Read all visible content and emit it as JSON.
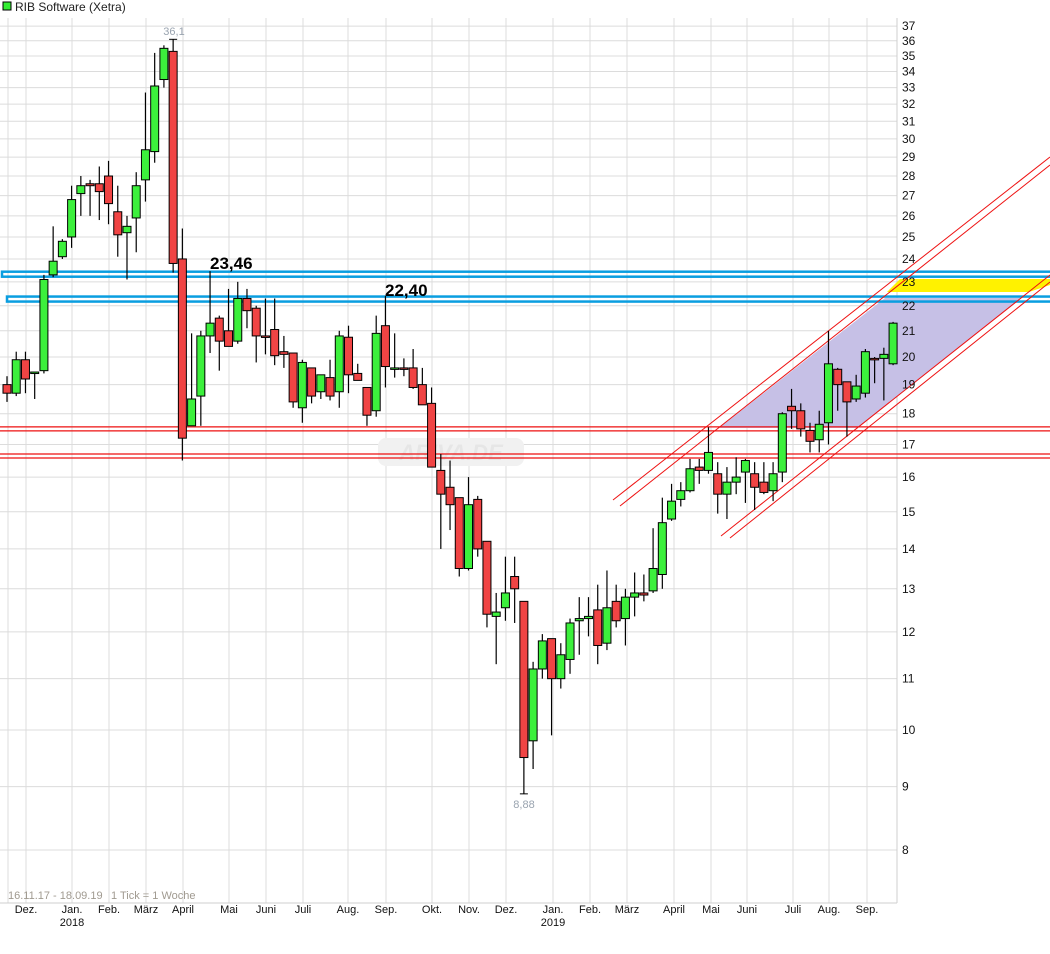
{
  "header": {
    "title": "RIB Software (Xetra)",
    "legend_color": "#33ee33"
  },
  "footer": {
    "range_text": "16.11.17 - 18.09.19",
    "tick_text": "1 Tick = 1 Woche"
  },
  "watermark": "ARIVA.DE",
  "colors": {
    "up": "#3cf03c",
    "down": "#f04444",
    "support": "#ee1111",
    "resistance": "#0a9ee0",
    "channel_fill": "#c6c0e6",
    "highlight": "#fff200"
  },
  "chart_data": {
    "type": "candlestick",
    "title": "RIB Software (Xetra)",
    "interval": "weekly",
    "date_range": "16.11.17 - 18.09.19",
    "y_scale": "log",
    "ylim": [
      8,
      37
    ],
    "y_ticks": [
      8,
      9,
      10,
      11,
      12,
      13,
      14,
      15,
      16,
      17,
      18,
      19,
      20,
      21,
      22,
      23,
      24,
      25,
      26,
      27,
      28,
      29,
      30,
      31,
      32,
      33,
      34,
      35,
      36,
      37
    ],
    "grid": true,
    "x_ticks": [
      {
        "label": "Dez.",
        "year": ""
      },
      {
        "label": "Jan.",
        "year": "2018"
      },
      {
        "label": "Feb.",
        "year": ""
      },
      {
        "label": "März",
        "year": ""
      },
      {
        "label": "April",
        "year": ""
      },
      {
        "label": "Mai",
        "year": ""
      },
      {
        "label": "Juni",
        "year": ""
      },
      {
        "label": "Juli",
        "year": ""
      },
      {
        "label": "Aug.",
        "year": ""
      },
      {
        "label": "Sep.",
        "year": ""
      },
      {
        "label": "Okt.",
        "year": ""
      },
      {
        "label": "Nov.",
        "year": ""
      },
      {
        "label": "Dez.",
        "year": ""
      },
      {
        "label": "Jan.",
        "year": "2019"
      },
      {
        "label": "Feb.",
        "year": ""
      },
      {
        "label": "März",
        "year": ""
      },
      {
        "label": "April",
        "year": ""
      },
      {
        "label": "Mai",
        "year": ""
      },
      {
        "label": "Juni",
        "year": ""
      },
      {
        "label": "Juli",
        "year": ""
      },
      {
        "label": "Aug.",
        "year": ""
      },
      {
        "label": "Sep.",
        "year": ""
      }
    ],
    "ohlc_fields": [
      "open",
      "high",
      "low",
      "close"
    ],
    "candles": [
      [
        19.0,
        19.3,
        18.4,
        18.7
      ],
      [
        18.7,
        20.2,
        18.6,
        19.9
      ],
      [
        19.9,
        20.2,
        18.7,
        19.2
      ],
      [
        19.4,
        19.4,
        18.5,
        19.45
      ],
      [
        19.5,
        23.3,
        19.4,
        23.1
      ],
      [
        23.3,
        25.5,
        23.2,
        23.9
      ],
      [
        24.1,
        24.9,
        24.0,
        24.8
      ],
      [
        25.0,
        27.5,
        24.5,
        26.8
      ],
      [
        27.1,
        28.0,
        26.0,
        27.5
      ],
      [
        27.6,
        27.8,
        26.0,
        27.5
      ],
      [
        27.6,
        28.5,
        25.8,
        27.2
      ],
      [
        28.0,
        28.8,
        25.6,
        26.6
      ],
      [
        26.2,
        27.5,
        24.1,
        25.1
      ],
      [
        25.2,
        26.0,
        23.1,
        25.5
      ],
      [
        25.9,
        28.2,
        24.3,
        27.5
      ],
      [
        27.8,
        32.7,
        26.7,
        29.4
      ],
      [
        29.3,
        35.2,
        28.7,
        33.1
      ],
      [
        33.5,
        35.7,
        33.0,
        35.5
      ],
      [
        35.3,
        36.1,
        23.4,
        23.8
      ],
      [
        24.0,
        25.4,
        16.5,
        17.2
      ],
      [
        17.6,
        20.9,
        17.6,
        18.5
      ],
      [
        18.6,
        21.0,
        17.6,
        20.8
      ],
      [
        20.8,
        23.46,
        20.15,
        21.3
      ],
      [
        21.5,
        21.6,
        19.5,
        20.6
      ],
      [
        21.0,
        22.7,
        20.4,
        20.4
      ],
      [
        20.6,
        23.0,
        20.5,
        22.3
      ],
      [
        22.3,
        22.7,
        21.1,
        21.8
      ],
      [
        21.9,
        22.0,
        19.8,
        20.8
      ],
      [
        20.8,
        22.3,
        20.1,
        20.75
      ],
      [
        21.05,
        22.3,
        19.7,
        20.05
      ],
      [
        20.2,
        20.8,
        19.6,
        20.1
      ],
      [
        20.15,
        20.15,
        18.2,
        18.4
      ],
      [
        18.2,
        19.9,
        17.7,
        19.8
      ],
      [
        19.6,
        19.6,
        18.35,
        18.6
      ],
      [
        18.75,
        19.35,
        18.5,
        19.35
      ],
      [
        19.25,
        19.9,
        18.45,
        18.6
      ],
      [
        18.75,
        21.0,
        18.2,
        20.8
      ],
      [
        20.75,
        21.2,
        18.7,
        19.35
      ],
      [
        19.4,
        19.75,
        19.15,
        19.15
      ],
      [
        18.9,
        18.9,
        17.6,
        17.95
      ],
      [
        18.1,
        21.6,
        17.9,
        20.9
      ],
      [
        21.2,
        22.4,
        18.9,
        19.65
      ],
      [
        19.55,
        20.9,
        19.25,
        19.6
      ],
      [
        19.6,
        19.95,
        19.3,
        19.55
      ],
      [
        19.6,
        20.3,
        18.85,
        18.9
      ],
      [
        19.0,
        19.6,
        18.3,
        18.3
      ],
      [
        18.35,
        18.9,
        16.3,
        16.3
      ],
      [
        16.2,
        16.7,
        14.0,
        15.5
      ],
      [
        15.7,
        16.5,
        14.5,
        15.2
      ],
      [
        15.4,
        15.4,
        13.3,
        13.5
      ],
      [
        13.5,
        16.0,
        13.45,
        15.2
      ],
      [
        15.35,
        15.45,
        13.8,
        14.0
      ],
      [
        14.2,
        14.2,
        12.1,
        12.4
      ],
      [
        12.35,
        12.9,
        11.3,
        12.45
      ],
      [
        12.55,
        13.8,
        12.25,
        12.9
      ],
      [
        13.3,
        13.8,
        12.2,
        13.0
      ],
      [
        12.7,
        12.7,
        8.88,
        9.5
      ],
      [
        9.8,
        11.35,
        9.3,
        11.2
      ],
      [
        11.2,
        11.95,
        11.0,
        11.8
      ],
      [
        11.85,
        11.85,
        9.9,
        11.0
      ],
      [
        11.0,
        11.75,
        10.8,
        11.5
      ],
      [
        11.4,
        12.3,
        11.1,
        12.2
      ],
      [
        12.25,
        12.8,
        11.5,
        12.3
      ],
      [
        12.3,
        12.8,
        11.9,
        12.35
      ],
      [
        12.5,
        13.1,
        11.3,
        11.7
      ],
      [
        11.75,
        13.45,
        11.6,
        12.55
      ],
      [
        12.7,
        13.1,
        12.1,
        12.25
      ],
      [
        12.3,
        13.0,
        11.7,
        12.8
      ],
      [
        12.8,
        13.4,
        12.35,
        12.9
      ],
      [
        12.9,
        13.35,
        12.7,
        12.85
      ],
      [
        12.95,
        14.55,
        12.9,
        13.5
      ],
      [
        13.35,
        15.4,
        13.0,
        14.7
      ],
      [
        14.8,
        15.8,
        14.75,
        15.3
      ],
      [
        15.35,
        15.85,
        15.15,
        15.6
      ],
      [
        15.6,
        16.55,
        15.55,
        16.25
      ],
      [
        16.3,
        16.55,
        15.8,
        16.2
      ],
      [
        16.2,
        17.55,
        16.1,
        16.75
      ],
      [
        16.1,
        16.45,
        14.95,
        15.5
      ],
      [
        15.5,
        16.3,
        14.8,
        15.85
      ],
      [
        15.85,
        16.6,
        15.5,
        16.0
      ],
      [
        16.15,
        16.55,
        15.25,
        16.5
      ],
      [
        16.1,
        16.45,
        15.05,
        15.7
      ],
      [
        15.85,
        16.45,
        15.5,
        15.55
      ],
      [
        15.6,
        16.45,
        15.3,
        16.1
      ],
      [
        16.15,
        18.05,
        15.85,
        18.0
      ],
      [
        18.25,
        18.85,
        17.5,
        18.1
      ],
      [
        18.1,
        18.35,
        17.25,
        17.5
      ],
      [
        17.45,
        17.7,
        16.75,
        17.1
      ],
      [
        17.15,
        18.1,
        16.75,
        17.65
      ],
      [
        17.7,
        21.0,
        17.0,
        19.75
      ],
      [
        19.55,
        19.6,
        18.1,
        19.0
      ],
      [
        19.1,
        19.1,
        17.25,
        18.4
      ],
      [
        18.5,
        19.35,
        18.4,
        18.95
      ],
      [
        18.7,
        20.3,
        18.55,
        20.2
      ],
      [
        19.95,
        20.0,
        19.05,
        19.9
      ],
      [
        19.95,
        20.35,
        18.45,
        20.1
      ],
      [
        19.75,
        21.35,
        19.7,
        21.3
      ]
    ],
    "annotations": {
      "high_label": "36,1",
      "high_value": 36.1,
      "low_label": "8,88",
      "low_value": 8.88,
      "resistance_labels": [
        "23,46",
        "22,40"
      ],
      "resistance_levels": [
        23.46,
        22.4
      ],
      "support_levels": [
        17.5,
        16.64
      ]
    }
  }
}
